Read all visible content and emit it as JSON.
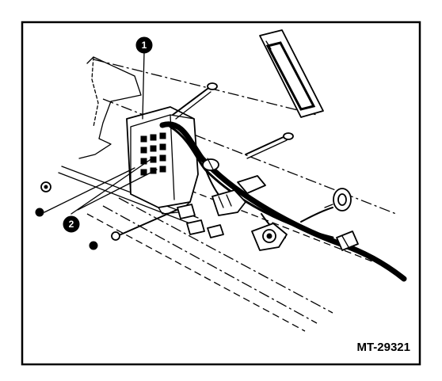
{
  "figure_id": "MT-29321",
  "callouts": [
    {
      "label": "1"
    },
    {
      "label": "2"
    }
  ],
  "colors": {
    "ink": "#000000",
    "paper": "#ffffff"
  }
}
